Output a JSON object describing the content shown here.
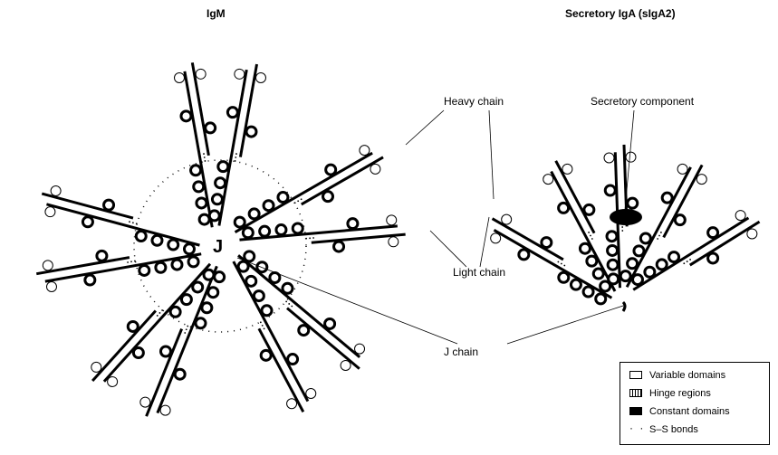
{
  "titles": {
    "igm": "IgM",
    "siga": "Secretory IgA (sIgA2)"
  },
  "callouts": {
    "heavy_chain": "Heavy chain",
    "secretory_component": "Secretory component",
    "light_chain": "Light chain",
    "j_chain": "J chain",
    "j_letter": "J"
  },
  "legend": {
    "items": [
      {
        "label": "Variable domains",
        "swatch": "variable"
      },
      {
        "label": "Hinge regions",
        "swatch": "hinge"
      },
      {
        "label": "Constant domains",
        "swatch": "constant"
      },
      {
        "label": "S–S bonds",
        "swatch": "ss"
      }
    ]
  }
}
